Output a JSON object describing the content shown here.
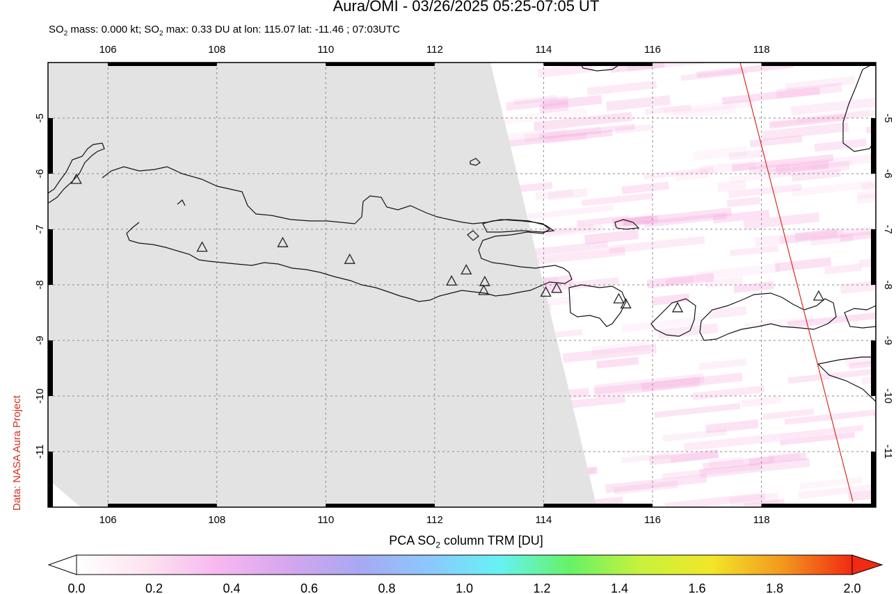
{
  "header": {
    "title": "Aura/OMI - 03/26/2025 05:25-07:05 UT",
    "subtitle_prefix": "SO",
    "subtitle_sub": "2",
    "subtitle_mid": " mass: 0.000 kt; SO",
    "subtitle_sub2": "2",
    "subtitle_rest": " max: 0.33 DU at lon: 115.07 lat: -11.46 ; 07:03UTC"
  },
  "credit": "Data: NASA Aura Project",
  "colorbar": {
    "title_prefix": "PCA SO",
    "title_sub": "2",
    "title_rest": " column TRM [DU]",
    "tick_labels": [
      "0.0",
      "0.2",
      "0.4",
      "0.6",
      "0.8",
      "1.0",
      "1.2",
      "1.4",
      "1.6",
      "1.8",
      "2.0"
    ],
    "min": 0.0,
    "max": 2.0,
    "colors": [
      "#ffffff",
      "#fce3f0",
      "#f7b8f0",
      "#d6a6ee",
      "#a8a8f2",
      "#8cc8ff",
      "#66f2f2",
      "#66f266",
      "#c8f23c",
      "#f2e628",
      "#f29a1e",
      "#f22a12"
    ]
  },
  "map": {
    "lon_range": [
      104.9,
      120.1
    ],
    "lat_range": [
      -12.0,
      -4.0
    ],
    "lon_ticks": [
      "106",
      "108",
      "110",
      "112",
      "114",
      "116",
      "118"
    ],
    "lat_ticks": [
      "-5",
      "-6",
      "-7",
      "-8",
      "-9",
      "-10",
      "-11"
    ],
    "grid": "dashed",
    "no_data_color": "#e3e3e3",
    "volcano_markers": "triangles",
    "max_marker": {
      "lon": 115.07,
      "lat": -11.46
    }
  }
}
